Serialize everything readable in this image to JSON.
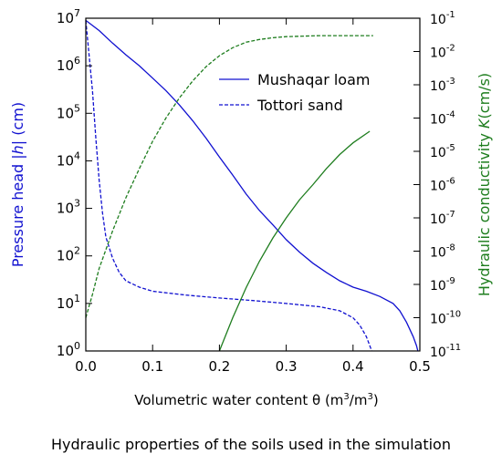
{
  "caption": "Hydraulic properties of the soils used in the simulation",
  "chart_data": {
    "type": "line",
    "x_axis": {
      "label": "Volumetric water content θ (m³/m³)",
      "label_parts": [
        "Volumetric water content θ (m",
        "3",
        "/m",
        "3",
        ")"
      ],
      "range": [
        0,
        0.5
      ],
      "ticks": [
        0,
        0.1,
        0.2,
        0.3,
        0.4,
        0.5
      ],
      "tick_labels": [
        "0.0",
        "0.1",
        "0.2",
        "0.3",
        "0.4",
        "0.5"
      ]
    },
    "y_left": {
      "label": "Pressure head |h| (cm)",
      "label_parts": [
        "Pressure head |",
        "h",
        "| (cm)"
      ],
      "scale": "log",
      "range": [
        1,
        10000000
      ],
      "ticks": [
        1,
        10,
        100,
        1000,
        10000,
        100000,
        1000000,
        10000000
      ],
      "tick_labels": [
        {
          "base": "10",
          "exp": "0"
        },
        {
          "base": "10",
          "exp": "1"
        },
        {
          "base": "10",
          "exp": "2"
        },
        {
          "base": "10",
          "exp": "3"
        },
        {
          "base": "10",
          "exp": "4"
        },
        {
          "base": "10",
          "exp": "5"
        },
        {
          "base": "10",
          "exp": "6"
        },
        {
          "base": "10",
          "exp": "7"
        }
      ],
      "color": "#1010d0"
    },
    "y_right": {
      "label": "Hydraulic conductivity K(cm/s)",
      "label_parts": [
        "Hydraulic conductivity ",
        "K",
        "(cm/s)"
      ],
      "scale": "log",
      "range": [
        1e-11,
        0.1
      ],
      "ticks": [
        1e-11,
        1e-10,
        1e-09,
        1e-08,
        1e-07,
        1e-06,
        1e-05,
        0.0001,
        0.001,
        0.01,
        0.1
      ],
      "tick_labels": [
        {
          "base": "10",
          "exp": "-11"
        },
        {
          "base": "10",
          "exp": "-10"
        },
        {
          "base": "10",
          "exp": "-9"
        },
        {
          "base": "10",
          "exp": "-8"
        },
        {
          "base": "10",
          "exp": "-7"
        },
        {
          "base": "10",
          "exp": "-6"
        },
        {
          "base": "10",
          "exp": "-5"
        },
        {
          "base": "10",
          "exp": "-4"
        },
        {
          "base": "10",
          "exp": "-3"
        },
        {
          "base": "10",
          "exp": "-2"
        },
        {
          "base": "10",
          "exp": "-1"
        }
      ],
      "color": "#1e7d1e"
    },
    "legend": {
      "placement": "top-right",
      "entries": [
        {
          "label": "Mushaqar loam",
          "style": "solid",
          "color": "#1010d0"
        },
        {
          "label": "Tottori sand",
          "style": "dashed",
          "color": "#1010d0"
        }
      ]
    },
    "series": [
      {
        "soil": "Mushaqar loam",
        "quantity": "pressure head",
        "axis": "left",
        "color": "#1010d0",
        "style": "solid",
        "points": [
          [
            0.0,
            9000000
          ],
          [
            0.02,
            5500000
          ],
          [
            0.04,
            3000000
          ],
          [
            0.06,
            1700000
          ],
          [
            0.08,
            1000000
          ],
          [
            0.1,
            550000
          ],
          [
            0.12,
            300000
          ],
          [
            0.14,
            150000
          ],
          [
            0.16,
            70000
          ],
          [
            0.18,
            30000
          ],
          [
            0.2,
            12000
          ],
          [
            0.22,
            5000
          ],
          [
            0.24,
            2000
          ],
          [
            0.26,
            900
          ],
          [
            0.28,
            450
          ],
          [
            0.3,
            220
          ],
          [
            0.32,
            120
          ],
          [
            0.34,
            70
          ],
          [
            0.36,
            45
          ],
          [
            0.38,
            30
          ],
          [
            0.4,
            22
          ],
          [
            0.42,
            18
          ],
          [
            0.44,
            14
          ],
          [
            0.46,
            10
          ],
          [
            0.47,
            7
          ],
          [
            0.48,
            4
          ],
          [
            0.49,
            2
          ],
          [
            0.495,
            1.3
          ],
          [
            0.497,
            1
          ]
        ]
      },
      {
        "soil": "Tottori sand",
        "quantity": "pressure head",
        "axis": "left",
        "color": "#1010d0",
        "style": "dashed",
        "points": [
          [
            0.0,
            9000000
          ],
          [
            0.01,
            300000
          ],
          [
            0.015,
            30000
          ],
          [
            0.02,
            4000
          ],
          [
            0.025,
            800
          ],
          [
            0.03,
            250
          ],
          [
            0.04,
            90
          ],
          [
            0.05,
            45
          ],
          [
            0.06,
            30
          ],
          [
            0.08,
            22
          ],
          [
            0.1,
            18
          ],
          [
            0.15,
            15
          ],
          [
            0.2,
            13
          ],
          [
            0.25,
            11.5
          ],
          [
            0.3,
            10
          ],
          [
            0.35,
            8.5
          ],
          [
            0.38,
            7
          ],
          [
            0.4,
            5
          ],
          [
            0.41,
            3.5
          ],
          [
            0.42,
            2
          ],
          [
            0.425,
            1.3
          ],
          [
            0.428,
            1
          ]
        ]
      },
      {
        "soil": "Mushaqar loam",
        "quantity": "hydraulic conductivity",
        "axis": "right",
        "color": "#1e7d1e",
        "style": "solid",
        "points": [
          [
            0.2,
            1e-11
          ],
          [
            0.22,
            1e-10
          ],
          [
            0.24,
            8e-10
          ],
          [
            0.26,
            5e-09
          ],
          [
            0.28,
            2.5e-08
          ],
          [
            0.3,
            1e-07
          ],
          [
            0.32,
            3.5e-07
          ],
          [
            0.34,
            1e-06
          ],
          [
            0.36,
            3e-06
          ],
          [
            0.38,
            8e-06
          ],
          [
            0.4,
            1.8e-05
          ],
          [
            0.425,
            4e-05
          ]
        ]
      },
      {
        "soil": "Tottori sand",
        "quantity": "hydraulic conductivity",
        "axis": "right",
        "color": "#1e7d1e",
        "style": "dashed",
        "points": [
          [
            0.0,
            1e-10
          ],
          [
            0.01,
            5e-10
          ],
          [
            0.02,
            3e-09
          ],
          [
            0.04,
            4e-08
          ],
          [
            0.06,
            4e-07
          ],
          [
            0.08,
            3e-06
          ],
          [
            0.1,
            2e-05
          ],
          [
            0.12,
            0.0001
          ],
          [
            0.14,
            0.0004
          ],
          [
            0.16,
            0.0013
          ],
          [
            0.18,
            0.0035
          ],
          [
            0.2,
            0.0075
          ],
          [
            0.22,
            0.013
          ],
          [
            0.24,
            0.019
          ],
          [
            0.26,
            0.023
          ],
          [
            0.28,
            0.026
          ],
          [
            0.3,
            0.028
          ],
          [
            0.35,
            0.03
          ],
          [
            0.43,
            0.03
          ]
        ]
      }
    ]
  }
}
